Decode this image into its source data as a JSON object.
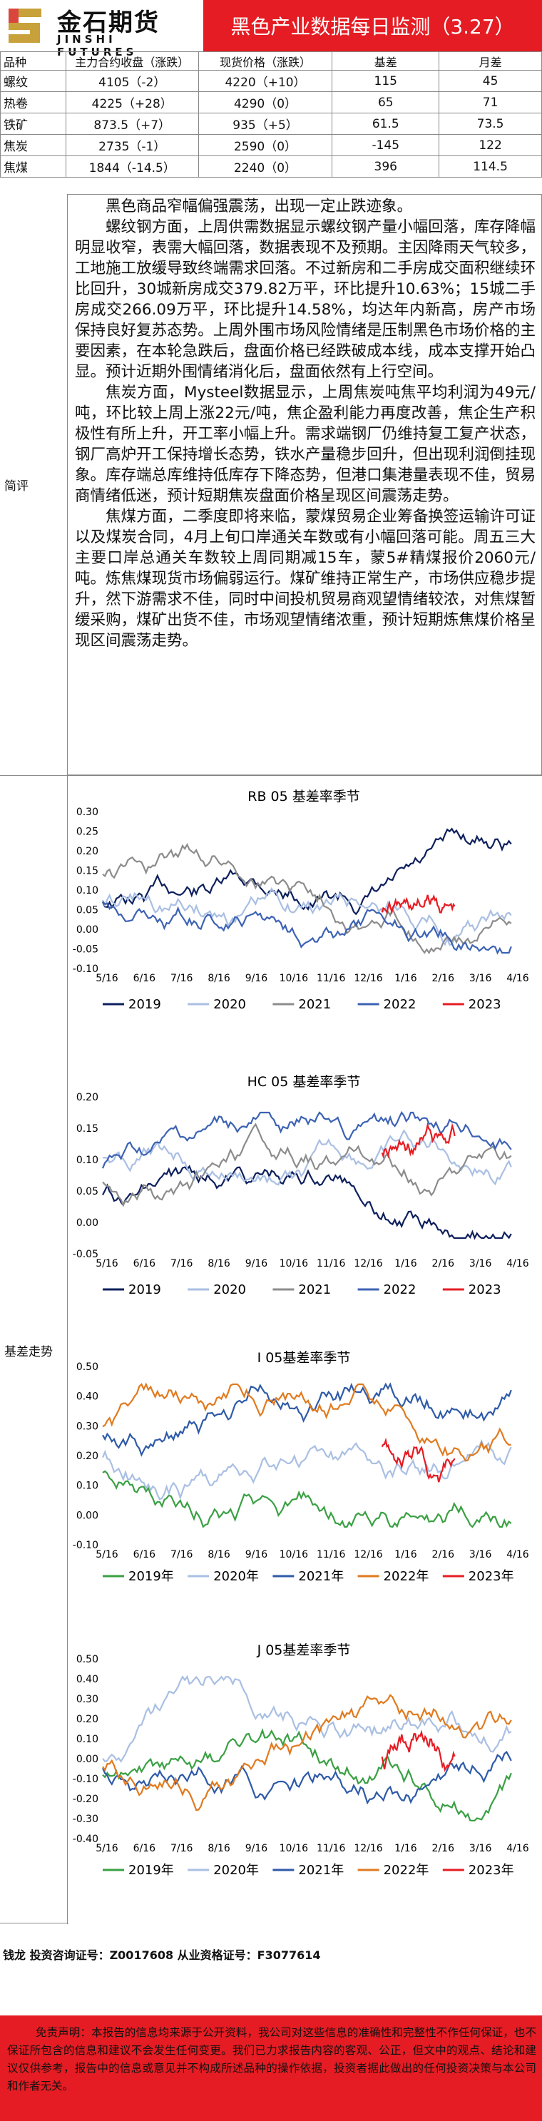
{
  "header": {
    "logo_cn": "金石期货",
    "logo_en": "JINSHI FUTURES",
    "title": "黑色产业数据每日监测（3.27）"
  },
  "prices": {
    "columns": [
      "品种",
      "主力合约收盘（涨跌）",
      "现货价格（涨跌）",
      "基差",
      "月差"
    ],
    "rows": [
      [
        "螺纹",
        "4105（-2）",
        "4220（+10）",
        "115",
        "45"
      ],
      [
        "热卷",
        "4225（+28）",
        "4290（0）",
        "65",
        "71"
      ],
      [
        "铁矿",
        "873.5（+7）",
        "935（+5）",
        "61.5",
        "73.5"
      ],
      [
        "焦炭",
        "2735（-1）",
        "2590（0）",
        "-145",
        "122"
      ],
      [
        "焦煤",
        "1844（-14.5）",
        "2240（0）",
        "396",
        "114.5"
      ]
    ]
  },
  "comment": {
    "label": "简评",
    "paragraphs": [
      "黑色商品窄幅偏强震荡，出现一定止跌迹象。",
      "螺纹钢方面，上周供需数据显示螺纹钢产量小幅回落，库存降幅明显收窄，表需大幅回落，数据表现不及预期。主因降雨天气较多，工地施工放缓导致终端需求回落。不过新房和二手房成交面积继续环比回升，30城新房成交379.82万平，环比提升10.63%；15城二手房成交266.09万平，环比提升14.58%，均达年内新高，房产市场保持良好复苏态势。上周外围市场风险情绪是压制黑色市场价格的主要因素，在本轮急跌后，盘面价格已经跌破成本线，成本支撑开始凸显。预计近期外围情绪消化后，盘面依然有上行空间。",
      "焦炭方面，Mysteel数据显示，上周焦炭吨焦平均利润为49元/吨，环比较上周上涨22元/吨，焦企盈利能力再度改善，焦企生产积极性有所上升，开工率小幅上升。需求端钢厂仍维持复工复产状态，钢厂高炉开工保持增长态势，铁水产量稳步回升，但出现利润倒挂现象。库存端总库维持低库存下降态势，但港口集港量表现不佳，贸易商情绪低迷，预计短期焦炭盘面价格呈现区间震荡走势。",
      "焦煤方面，二季度即将来临，蒙煤贸易企业筹备换签运输许可证以及煤炭合同，4月上旬口岸通关车数或有小幅回落可能。周五三大主要口岸总通关车数较上周同期减15车，蒙5#精煤报价2060元/吨。炼焦煤现货市场偏弱运行。煤矿维持正常生产，市场供应稳步提升，然下游需求不佳，同时中间投机贸易商观望情绪较浓，对焦煤暂缓采购，煤矿出货不佳，市场观望情绪浓重，预计短期炼焦煤价格呈现区间震荡走势。"
    ]
  },
  "basis_label": "基差走势",
  "charts": [
    {
      "title": "RB 05 基差率季节",
      "yticks": [
        "0.30",
        "0.25",
        "0.20",
        "0.15",
        "0.10",
        "0.05",
        "0.00",
        "-0.05",
        "-0.10"
      ],
      "legend": [
        "2019",
        "2020",
        "2021",
        "2022",
        "2023"
      ]
    },
    {
      "title": "HC 05 基差率季节",
      "yticks": [
        "0.20",
        "0.15",
        "0.10",
        "0.05",
        "0.00",
        "-0.05"
      ],
      "legend": [
        "2019",
        "2020",
        "2021",
        "2022",
        "2023"
      ]
    },
    {
      "title": "I 05基差率季节",
      "yticks": [
        "0.50",
        "0.40",
        "0.30",
        "0.20",
        "0.10",
        "0.00",
        "-0.10"
      ],
      "legend": [
        "2019年",
        "2020年",
        "2021年",
        "2022年",
        "2023年"
      ]
    },
    {
      "title": "J 05基差率季节",
      "yticks": [
        "0.50",
        "0.40",
        "0.30",
        "0.20",
        "0.10",
        "0.00",
        "-0.10",
        "-0.20",
        "-0.30",
        "-0.40"
      ],
      "legend": [
        "2019年",
        "2020年",
        "2021年",
        "2022年",
        "2023年"
      ]
    }
  ],
  "xticks": [
    "5/16",
    "6/16",
    "7/16",
    "8/16",
    "9/16",
    "10/16",
    "11/16",
    "12/16",
    "1/16",
    "2/16",
    "3/16",
    "4/16"
  ],
  "series_colors": [
    "#0d1f5c",
    "#a9bfe3",
    "#8c8c8c",
    "#3c62b4",
    "#e51c23"
  ],
  "series_colors_io": [
    "#3aa043",
    "#a9bfe3",
    "#2e5aa8",
    "#e07a1f",
    "#e51c23"
  ],
  "analyst": "钱龙 投资咨询证号：Z0017608 从业资格证号：F3077614",
  "disclaimer": "免责声明：本报告的信息均来源于公开资料，我公司对这些信息的准确性和完整性不作任何保证，也不保证所包含的信息和建议不会发生任何变更。我们已力求报告内容的客观、公正，但文中的观点、结论和建议仅供参考，报告中的信息或意见并不构成所述品种的操作依据，投资者据此做出的任何投资决策与本公司和作者无关。"
}
